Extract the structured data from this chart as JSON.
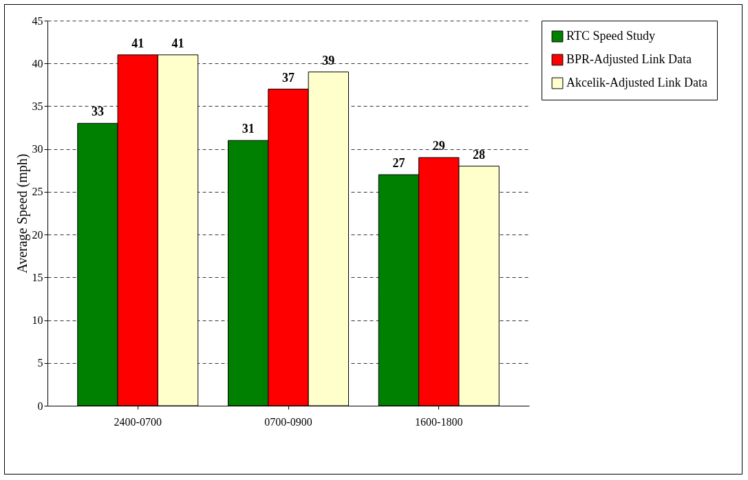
{
  "chart_data": {
    "type": "bar",
    "ylabel": "Average Speed (mph)",
    "categories": [
      "2400-0700",
      "0700-0900",
      "1600-1800"
    ],
    "series": [
      {
        "name": "RTC Speed Study",
        "color": "#008000",
        "values": [
          33,
          31,
          27
        ]
      },
      {
        "name": "BPR-Adjusted Link Data",
        "color": "#ff0000",
        "values": [
          41,
          37,
          29
        ]
      },
      {
        "name": "Akcelik-Adjusted Link Data",
        "color": "#ffffcc",
        "values": [
          41,
          39,
          28
        ]
      }
    ],
    "ylim": [
      0,
      45
    ],
    "yticks": [
      0,
      5,
      10,
      15,
      20,
      25,
      30,
      35,
      40,
      45
    ],
    "grid": "y",
    "legend": "right",
    "data_labels": true
  }
}
